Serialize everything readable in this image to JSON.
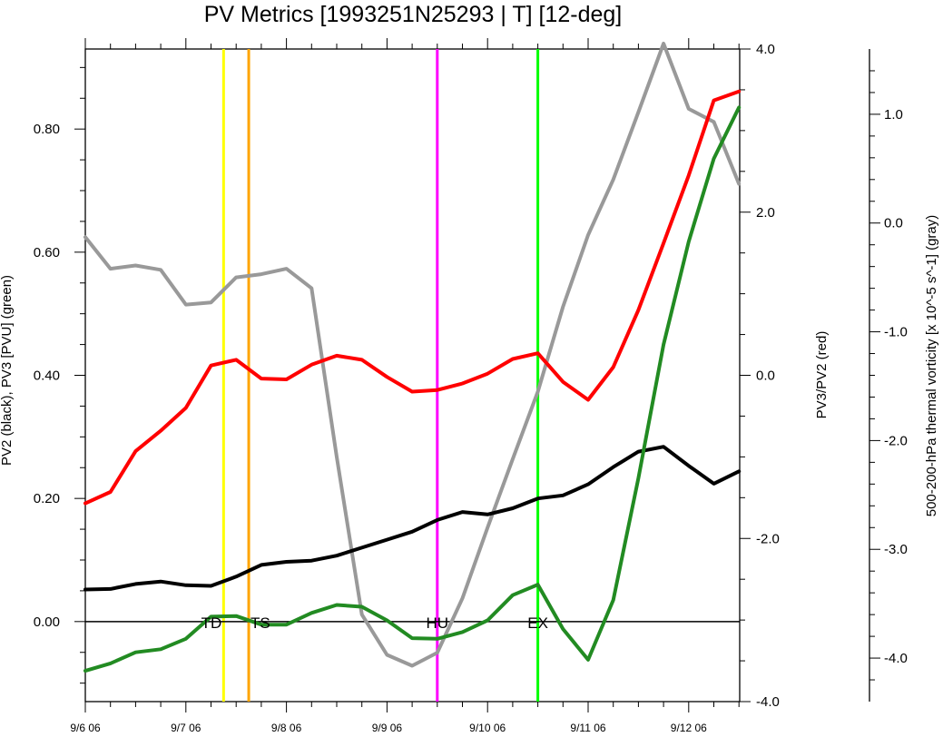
{
  "chart_data": {
    "type": "line",
    "title": "PV Metrics [1993251N25293 | T] [12-deg]",
    "x_ticks": [
      "9/6 06",
      "9/7 06",
      "9/8 06",
      "9/9 06",
      "9/10 06",
      "9/11 06",
      "9/12 06"
    ],
    "x_step_hours": 6,
    "left_axis": {
      "label": "PV2 (black), PV3 [PVU] (green)",
      "ylim": [
        -0.13,
        0.93
      ],
      "ticks": [
        0.0,
        0.2,
        0.4,
        0.6,
        0.8
      ],
      "tick_labels": [
        "0.00",
        "0.20",
        "0.40",
        "0.60",
        "0.80"
      ]
    },
    "right_axis": {
      "label": "PV3/PV2 (red)",
      "ylim": [
        -4.0,
        4.0
      ],
      "ticks": [
        -4.0,
        -2.0,
        0.0,
        2.0,
        4.0
      ],
      "tick_labels": [
        "-4.0",
        "-2.0",
        "0.0",
        "2.0",
        "4.0"
      ]
    },
    "far_right_axis": {
      "label": "500-200-hPa thermal vorticity [x 10^-5 s^-1] (gray)",
      "ylim": [
        -4.4,
        1.6
      ],
      "ticks": [
        -4.0,
        -3.0,
        -2.0,
        -1.0,
        0.0,
        1.0
      ],
      "tick_labels": [
        "-4.0",
        "-3.0",
        "-2.0",
        "-1.0",
        "0.0",
        "1.0"
      ]
    },
    "series": [
      {
        "name": "PV2",
        "axis": "left",
        "color": "#000000",
        "values": [
          0.052,
          0.053,
          0.061,
          0.065,
          0.059,
          0.058,
          0.073,
          0.092,
          0.097,
          0.099,
          0.107,
          0.12,
          0.133,
          0.146,
          0.165,
          0.178,
          0.174,
          0.184,
          0.2,
          0.205,
          0.223,
          0.251,
          0.276,
          0.284,
          0.253,
          0.224,
          0.244
        ]
      },
      {
        "name": "PV3",
        "axis": "left",
        "color": "#228b22",
        "values": [
          -0.08,
          -0.068,
          -0.05,
          -0.045,
          -0.028,
          0.008,
          0.009,
          -0.005,
          -0.005,
          0.014,
          0.027,
          0.024,
          0.002,
          -0.027,
          -0.028,
          -0.017,
          0.002,
          0.043,
          0.06,
          -0.012,
          -0.062,
          0.035,
          0.233,
          0.45,
          0.617,
          0.752,
          0.835
        ]
      },
      {
        "name": "PV3/PV2",
        "axis": "right",
        "color": "#ff0000",
        "values": [
          -1.57,
          -1.43,
          -0.93,
          -0.68,
          -0.4,
          0.12,
          0.19,
          -0.04,
          -0.05,
          0.13,
          0.24,
          0.19,
          -0.02,
          -0.2,
          -0.18,
          -0.1,
          0.02,
          0.2,
          0.27,
          -0.08,
          -0.3,
          0.1,
          0.8,
          1.62,
          2.45,
          3.37,
          3.48
        ]
      },
      {
        "name": "Thermal vorticity",
        "axis": "far_right",
        "color": "#999999",
        "values": [
          -0.13,
          -0.42,
          -0.39,
          -0.43,
          -0.75,
          -0.73,
          -0.5,
          -0.47,
          -0.42,
          -0.6,
          -2.15,
          -3.6,
          -3.97,
          -4.07,
          -3.95,
          -3.45,
          -2.8,
          -2.17,
          -1.55,
          -0.77,
          -0.11,
          0.4,
          1.02,
          1.65,
          1.05,
          0.93,
          0.36
        ]
      }
    ],
    "zero_line": {
      "axis": "left",
      "value": 0.0,
      "color": "#000000"
    },
    "event_lines": [
      {
        "index": 5.5,
        "color": "#ffff00",
        "label": "TD"
      },
      {
        "index": 6.5,
        "color": "#ffa500",
        "label": "TS"
      },
      {
        "index": 14.0,
        "color": "#ff00ff",
        "label": "HU"
      },
      {
        "index": 18.0,
        "color": "#00ff00",
        "label": "EX"
      }
    ]
  }
}
